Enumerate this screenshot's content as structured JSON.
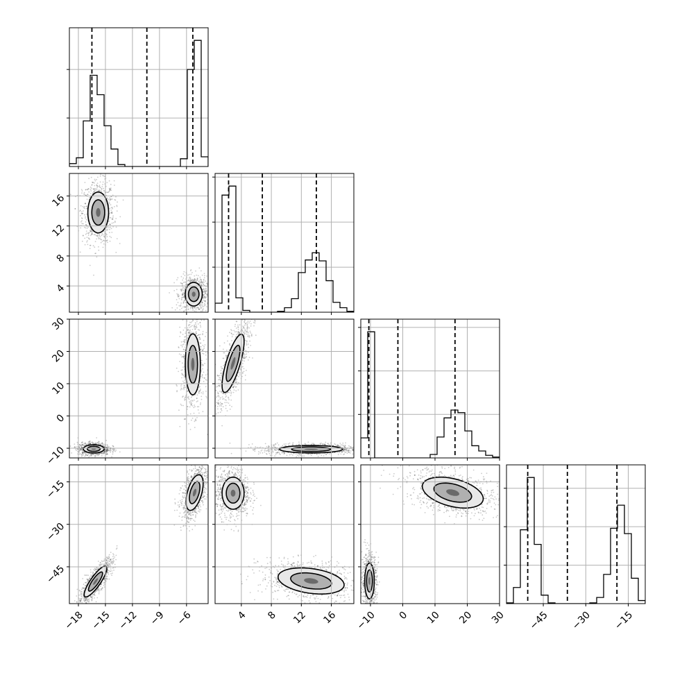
{
  "colors": {
    "ink": "#000000",
    "grid": "#b0b0b0",
    "scatter": "#2a2a2a",
    "density_fill": "#e8e8e8",
    "density_mid": "#b0b0b0",
    "density_core": "#6a6a6a"
  },
  "chart_data": {
    "type": "corner",
    "grid": true,
    "parameters": [
      {
        "range": [
          -19,
          -3.6
        ],
        "ticks": [
          -18,
          -15,
          -12,
          -9,
          -6
        ],
        "tick_labels": [
          "−18",
          "−15",
          "−12",
          "−9",
          "−6"
        ],
        "quantiles": [
          -16.5,
          -10.4,
          -5.3
        ]
      },
      {
        "range": [
          0.5,
          19
        ],
        "ticks": [
          4,
          8,
          12,
          16
        ],
        "tick_labels": [
          "4",
          "8",
          "12",
          "16"
        ],
        "quantiles": [
          2.3,
          6.8,
          14.0
        ]
      },
      {
        "range": [
          -13,
          30
        ],
        "ticks": [
          -10,
          0,
          10,
          20,
          30
        ],
        "tick_labels": [
          "−10",
          "0",
          "10",
          "20",
          "30"
        ],
        "quantiles": [
          -10.5,
          -1.5,
          16.2
        ]
      },
      {
        "range": [
          -58,
          -9
        ],
        "ticks": [
          -45,
          -30,
          -15
        ],
        "tick_labels": [
          "−45",
          "−30",
          "−15"
        ],
        "quantiles": [
          -50.5,
          -36.5,
          -19.0
        ]
      }
    ],
    "histograms": [
      {
        "param": 0,
        "edges_start": -19,
        "edges_step": 0.77,
        "values": [
          0.03,
          0.09,
          0.47,
          0.94,
          0.74,
          0.42,
          0.18,
          0.02,
          0,
          0,
          0,
          0,
          0,
          0,
          0,
          0,
          0.08,
          1.0,
          1.3,
          0.1
        ]
      },
      {
        "param": 1,
        "edges_start": 0.5,
        "edges_step": 0.925,
        "values": [
          0.1,
          1.3,
          1.4,
          0.16,
          0.02,
          0,
          0,
          0,
          0,
          0.01,
          0.05,
          0.15,
          0.44,
          0.58,
          0.66,
          0.57,
          0.35,
          0.11,
          0.05,
          0.01
        ]
      },
      {
        "param": 2,
        "edges_start": -13,
        "edges_step": 2.15,
        "values": [
          0.23,
          1.45,
          0,
          0,
          0,
          0,
          0,
          0,
          0,
          0,
          0.04,
          0.24,
          0.46,
          0.55,
          0.52,
          0.31,
          0.14,
          0.08,
          0.03,
          0.01
        ]
      },
      {
        "param": 3,
        "edges_start": -58,
        "edges_step": 2.45,
        "values": [
          0.01,
          0.21,
          0.96,
          1.64,
          0.77,
          0.11,
          0.01,
          0,
          0,
          0,
          0,
          0,
          0.01,
          0.08,
          0.38,
          0.98,
          1.28,
          0.91,
          0.33,
          0.04
        ]
      }
    ],
    "pairs": [
      {
        "x_param": 0,
        "y_param": 1,
        "clusters": [
          {
            "cx": -15.8,
            "cy": 13.8,
            "sx": 0.55,
            "sy": 1.3,
            "rho": 0.0,
            "weight": 0.5
          },
          {
            "cx": -5.2,
            "cy": 2.9,
            "sx": 0.45,
            "sy": 0.75,
            "rho": 0.0,
            "weight": 0.5
          }
        ]
      },
      {
        "x_param": 0,
        "y_param": 2,
        "clusters": [
          {
            "cx": -16.3,
            "cy": -10.2,
            "sx": 0.55,
            "sy": 0.6,
            "rho": 0.0,
            "weight": 0.5
          },
          {
            "cx": -5.3,
            "cy": 16.0,
            "sx": 0.4,
            "sy": 4.5,
            "rho": 0.0,
            "weight": 0.5
          }
        ]
      },
      {
        "x_param": 0,
        "y_param": 3,
        "clusters": [
          {
            "cx": -16.1,
            "cy": -50.2,
            "sx": 0.6,
            "sy": 2.6,
            "rho": 0.85,
            "weight": 0.5
          },
          {
            "cx": -5.1,
            "cy": -18.8,
            "sx": 0.45,
            "sy": 3.0,
            "rho": 0.5,
            "weight": 0.5
          }
        ]
      },
      {
        "x_param": 1,
        "y_param": 2,
        "clusters": [
          {
            "cx": 2.9,
            "cy": 16.3,
            "sx": 0.7,
            "sy": 4.3,
            "rho": 0.75,
            "weight": 0.5
          },
          {
            "cx": 13.3,
            "cy": -10.3,
            "sx": 2.0,
            "sy": 0.55,
            "rho": 0.0,
            "weight": 0.5
          }
        ]
      },
      {
        "x_param": 1,
        "y_param": 3,
        "clusters": [
          {
            "cx": 2.9,
            "cy": -19.0,
            "sx": 0.7,
            "sy": 2.7,
            "rho": 0.0,
            "weight": 0.5
          },
          {
            "cx": 13.3,
            "cy": -50.0,
            "sx": 2.1,
            "sy": 2.2,
            "rho": -0.3,
            "weight": 0.5
          }
        ]
      },
      {
        "x_param": 2,
        "y_param": 3,
        "clusters": [
          {
            "cx": -10.3,
            "cy": -50.0,
            "sx": 0.7,
            "sy": 3.0,
            "rho": 0.0,
            "weight": 0.5
          },
          {
            "cx": 15.5,
            "cy": -18.8,
            "sx": 4.5,
            "sy": 2.6,
            "rho": -0.4,
            "weight": 0.5
          }
        ]
      }
    ]
  }
}
